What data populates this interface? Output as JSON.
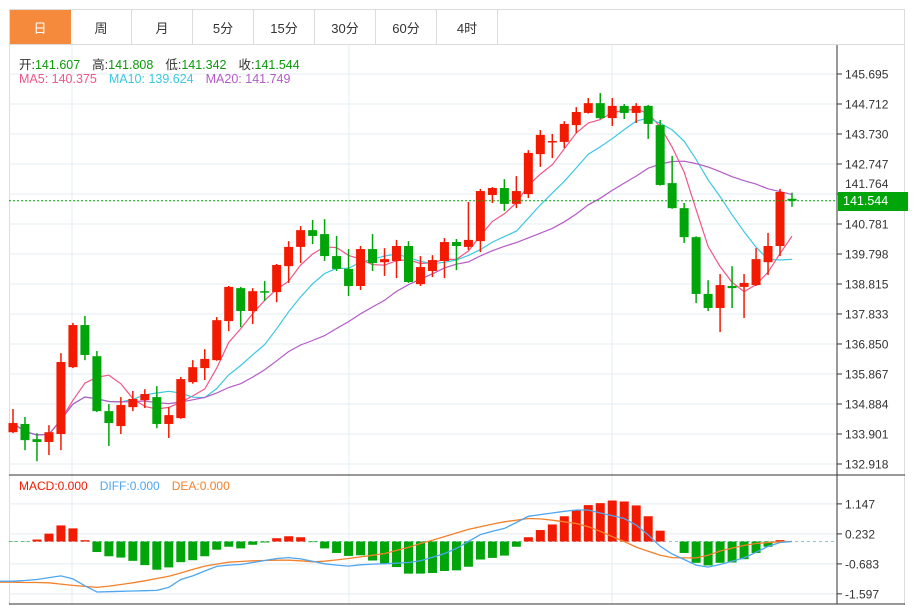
{
  "tabs": [
    {
      "label": "日",
      "active": true
    },
    {
      "label": "周",
      "active": false
    },
    {
      "label": "月",
      "active": false
    },
    {
      "label": "5分",
      "active": false
    },
    {
      "label": "15分",
      "active": false
    },
    {
      "label": "30分",
      "active": false
    },
    {
      "label": "60分",
      "active": false
    },
    {
      "label": "4时",
      "active": false
    }
  ],
  "ohlc_info": {
    "open_label": "开:",
    "open": "141.607",
    "high_label": "高:",
    "high": "141.808",
    "low_label": "低:",
    "low": "141.342",
    "close_label": "收:",
    "close": "141.544"
  },
  "ma_info": {
    "ma5": "MA5: 140.375",
    "ma10": "MA10: 139.624",
    "ma20": "MA20: 141.749"
  },
  "macd_info": {
    "macd": "MACD:0.000",
    "diff": "DIFF:0.000",
    "dea": "DEA:0.000"
  },
  "current_price_label": "141.544",
  "colors": {
    "up": "#f21a00",
    "down": "#00a50a",
    "ma5": "#f0568a",
    "ma10": "#3cc8e0",
    "ma20": "#b45bc8",
    "diff": "#4ea6f0",
    "dea": "#f5802a",
    "accent": "#f58a3d",
    "price_tag": "#00a50a"
  },
  "chart_data": [
    {
      "type": "candlestick",
      "title": "",
      "price_ticks": [
        "145.695",
        "144.712",
        "143.730",
        "142.747",
        "141.764",
        "140.781",
        "139.798",
        "138.815",
        "137.833",
        "136.850",
        "135.867",
        "134.884",
        "133.901",
        "132.918"
      ],
      "ylim": [
        132.918,
        145.695
      ],
      "current_price": 141.544,
      "ma_periods": [
        5,
        10,
        20
      ],
      "candles": [
        [
          133.96,
          134.72,
          133.93,
          134.26
        ],
        [
          134.23,
          134.46,
          133.37,
          133.7
        ],
        [
          133.73,
          133.93,
          133.01,
          133.64
        ],
        [
          133.64,
          134.19,
          133.21,
          133.96
        ],
        [
          133.9,
          136.55,
          133.37,
          136.26
        ],
        [
          136.09,
          137.54,
          136.06,
          137.47
        ],
        [
          137.47,
          137.77,
          136.32,
          136.49
        ],
        [
          136.45,
          136.62,
          134.62,
          134.65
        ],
        [
          134.65,
          134.88,
          133.51,
          134.26
        ],
        [
          134.16,
          135.11,
          133.9,
          134.85
        ],
        [
          134.78,
          135.31,
          134.65,
          135.05
        ],
        [
          135.01,
          135.37,
          134.75,
          135.21
        ],
        [
          135.11,
          135.47,
          134.09,
          134.23
        ],
        [
          134.23,
          134.78,
          133.77,
          134.52
        ],
        [
          134.42,
          135.77,
          134.4,
          135.7
        ],
        [
          135.6,
          136.32,
          135.55,
          136.09
        ],
        [
          136.06,
          136.68,
          135.67,
          136.36
        ],
        [
          136.32,
          137.73,
          136.3,
          137.63
        ],
        [
          137.6,
          138.75,
          137.27,
          138.72
        ],
        [
          138.68,
          138.72,
          137.4,
          137.93
        ],
        [
          137.93,
          138.68,
          137.5,
          138.58
        ],
        [
          138.58,
          138.91,
          138.26,
          138.55
        ],
        [
          138.55,
          139.47,
          138.22,
          139.44
        ],
        [
          139.4,
          140.22,
          138.85,
          140.03
        ],
        [
          140.03,
          140.71,
          139.5,
          140.58
        ],
        [
          140.58,
          140.91,
          140.12,
          140.39
        ],
        [
          140.45,
          140.94,
          139.57,
          139.73
        ],
        [
          139.73,
          140.39,
          139.24,
          139.31
        ],
        [
          139.31,
          139.96,
          138.42,
          138.75
        ],
        [
          138.75,
          140.06,
          138.62,
          139.96
        ],
        [
          139.96,
          140.45,
          139.24,
          139.5
        ],
        [
          139.53,
          139.99,
          139.08,
          139.63
        ],
        [
          139.57,
          140.26,
          139.01,
          140.06
        ],
        [
          140.06,
          140.22,
          138.85,
          138.88
        ],
        [
          138.81,
          139.73,
          138.75,
          139.37
        ],
        [
          139.24,
          139.76,
          139.04,
          139.6
        ],
        [
          139.57,
          140.32,
          139.01,
          140.19
        ],
        [
          140.19,
          140.29,
          139.27,
          140.06
        ],
        [
          140.03,
          141.5,
          139.93,
          140.26
        ],
        [
          140.22,
          141.93,
          139.86,
          141.86
        ],
        [
          141.73,
          141.99,
          141.47,
          141.96
        ],
        [
          141.96,
          142.25,
          141.21,
          141.44
        ],
        [
          141.44,
          142.35,
          141.3,
          141.86
        ],
        [
          141.76,
          143.2,
          141.63,
          143.11
        ],
        [
          143.07,
          143.86,
          142.65,
          143.7
        ],
        [
          143.47,
          143.73,
          142.94,
          143.5
        ],
        [
          143.47,
          144.15,
          143.27,
          144.06
        ],
        [
          144.02,
          144.61,
          143.76,
          144.45
        ],
        [
          144.42,
          144.91,
          144.4,
          144.74
        ],
        [
          144.74,
          145.07,
          144.22,
          144.25
        ],
        [
          144.25,
          144.91,
          143.99,
          144.65
        ],
        [
          144.65,
          144.71,
          144.22,
          144.42
        ],
        [
          144.42,
          144.74,
          144.09,
          144.65
        ],
        [
          144.65,
          144.68,
          143.57,
          144.06
        ],
        [
          144.02,
          144.19,
          142.04,
          142.06
        ],
        [
          142.12,
          143.01,
          141.28,
          141.3
        ],
        [
          141.3,
          141.47,
          140.16,
          140.35
        ],
        [
          140.35,
          140.38,
          138.19,
          138.49
        ],
        [
          138.49,
          138.94,
          137.93,
          138.03
        ],
        [
          138.03,
          139.14,
          137.24,
          138.78
        ],
        [
          138.75,
          139.4,
          138.03,
          138.68
        ],
        [
          138.72,
          139.14,
          137.7,
          138.85
        ],
        [
          138.78,
          139.99,
          138.75,
          139.63
        ],
        [
          139.53,
          140.49,
          139.11,
          140.06
        ],
        [
          140.06,
          141.93,
          139.73,
          141.83
        ],
        [
          141.607,
          141.808,
          141.342,
          141.544
        ]
      ]
    },
    {
      "type": "bar",
      "title": "MACD",
      "macd_ticks": [
        "1.147",
        "0.232",
        "-0.683",
        "-1.597"
      ],
      "ylim": [
        -1.597,
        1.6
      ],
      "histogram": [
        -0.01,
        -0.01,
        0.06,
        0.24,
        0.49,
        0.4,
        0.04,
        -0.32,
        -0.45,
        -0.49,
        -0.59,
        -0.72,
        -0.86,
        -0.79,
        -0.63,
        -0.57,
        -0.45,
        -0.25,
        -0.16,
        -0.21,
        -0.1,
        -0.03,
        0.1,
        0.16,
        0.13,
        -0.02,
        -0.21,
        -0.35,
        -0.44,
        -0.42,
        -0.58,
        -0.67,
        -0.78,
        -0.98,
        -0.98,
        -0.96,
        -0.9,
        -0.88,
        -0.77,
        -0.55,
        -0.5,
        -0.43,
        -0.16,
        0.13,
        0.35,
        0.52,
        0.77,
        0.96,
        1.11,
        1.17,
        1.25,
        1.22,
        1.1,
        0.77,
        0.33,
        0.0,
        -0.35,
        -0.65,
        -0.73,
        -0.65,
        -0.64,
        -0.54,
        -0.35,
        -0.16,
        0.04,
        0.0
      ],
      "diff": [
        -1.21,
        -1.19,
        -1.16,
        -1.1,
        -1.05,
        -1.14,
        -1.35,
        -1.54,
        -1.53,
        -1.52,
        -1.51,
        -1.5,
        -1.49,
        -1.4,
        -1.16,
        -1.05,
        -0.9,
        -0.76,
        -0.72,
        -0.7,
        -0.64,
        -0.58,
        -0.52,
        -0.49,
        -0.53,
        -0.6,
        -0.68,
        -0.72,
        -0.75,
        -0.71,
        -0.69,
        -0.68,
        -0.66,
        -0.64,
        -0.59,
        -0.48,
        -0.37,
        -0.21,
        0.0,
        0.21,
        0.31,
        0.4,
        0.58,
        0.77,
        0.82,
        0.87,
        0.92,
        0.96,
        0.96,
        0.87,
        0.79,
        0.7,
        0.5,
        0.2,
        -0.15,
        -0.38,
        -0.55,
        -0.72,
        -0.78,
        -0.7,
        -0.6,
        -0.5,
        -0.33,
        -0.15,
        -0.03,
        0.0
      ],
      "dea": [
        -1.24,
        -1.25,
        -1.25,
        -1.26,
        -1.3,
        -1.34,
        -1.37,
        -1.4,
        -1.36,
        -1.31,
        -1.26,
        -1.2,
        -1.13,
        -1.06,
        -0.96,
        -0.85,
        -0.75,
        -0.69,
        -0.63,
        -0.61,
        -0.59,
        -0.58,
        -0.57,
        -0.57,
        -0.59,
        -0.62,
        -0.6,
        -0.56,
        -0.52,
        -0.47,
        -0.42,
        -0.37,
        -0.27,
        -0.18,
        -0.06,
        0.04,
        0.15,
        0.26,
        0.37,
        0.45,
        0.53,
        0.6,
        0.65,
        0.7,
        0.69,
        0.65,
        0.6,
        0.55,
        0.45,
        0.31,
        0.15,
        0.0,
        -0.17,
        -0.3,
        -0.42,
        -0.49,
        -0.5,
        -0.5,
        -0.42,
        -0.29,
        -0.2,
        -0.12,
        -0.06,
        -0.03,
        -0.01,
        0.0
      ]
    }
  ]
}
